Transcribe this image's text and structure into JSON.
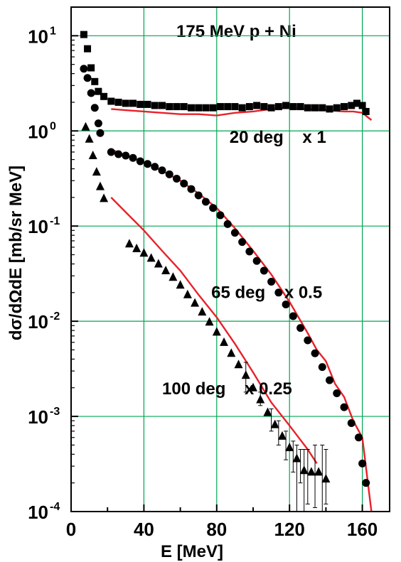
{
  "chart_data": {
    "type": "scatter",
    "title": "175 MeV p + Ni",
    "xlabel": "E [MeV]",
    "ylabel": "dσ/dΩdE  [mb/sr MeV]",
    "xlim": [
      0,
      175
    ],
    "ylim": [
      0.0001,
      20
    ],
    "yscale": "log",
    "grid": true,
    "grid_color": "#00a651",
    "calc_color": "#e8212a",
    "x_ticks": [
      "0",
      "40",
      "80",
      "120",
      "160"
    ],
    "x_tick_values": [
      0,
      40,
      80,
      120,
      160
    ],
    "y_ticks": [
      {
        "base": "10",
        "exp": "1",
        "value": 10
      },
      {
        "base": "10",
        "exp": "0",
        "value": 1
      },
      {
        "base": "10",
        "exp": "-1",
        "value": 0.1
      },
      {
        "base": "10",
        "exp": "-2",
        "value": 0.01
      },
      {
        "base": "10",
        "exp": "-3",
        "value": 0.001
      },
      {
        "base": "10",
        "exp": "-4",
        "value": 0.0001
      }
    ],
    "annotations": [
      {
        "text": "20 deg    x 1",
        "x": 87,
        "y": 0.75
      },
      {
        "text": "65 deg    x 0.5",
        "x": 77,
        "y": 0.0175
      },
      {
        "text": "100 deg    x 0.25",
        "x": 50,
        "y": 0.0017
      }
    ],
    "series": [
      {
        "marker": "square",
        "points": [
          [
            7,
            10.3
          ],
          [
            9,
            7.3
          ],
          [
            11,
            4.6
          ],
          [
            13,
            3.3
          ],
          [
            15,
            2.6
          ],
          [
            18,
            2.3
          ],
          [
            22,
            2.05
          ],
          [
            26,
            2.0
          ],
          [
            30,
            1.95
          ],
          [
            34,
            1.95
          ],
          [
            38,
            1.9
          ],
          [
            42,
            1.9
          ],
          [
            46,
            1.85
          ],
          [
            50,
            1.85
          ],
          [
            54,
            1.8
          ],
          [
            58,
            1.8
          ],
          [
            62,
            1.8
          ],
          [
            66,
            1.75
          ],
          [
            70,
            1.75
          ],
          [
            74,
            1.75
          ],
          [
            78,
            1.75
          ],
          [
            82,
            1.8
          ],
          [
            86,
            1.8
          ],
          [
            90,
            1.8
          ],
          [
            94,
            1.75
          ],
          [
            98,
            1.8
          ],
          [
            102,
            1.85
          ],
          [
            106,
            1.8
          ],
          [
            110,
            1.75
          ],
          [
            114,
            1.8
          ],
          [
            118,
            1.85
          ],
          [
            122,
            1.8
          ],
          [
            126,
            1.8
          ],
          [
            130,
            1.75
          ],
          [
            134,
            1.75
          ],
          [
            138,
            1.75
          ],
          [
            142,
            1.7
          ],
          [
            146,
            1.75
          ],
          [
            150,
            1.8
          ],
          [
            154,
            1.85
          ],
          [
            157,
            1.95
          ],
          [
            160,
            1.85
          ],
          [
            162,
            1.6
          ]
        ]
      },
      {
        "marker": "circle",
        "points": [
          [
            7,
            4.5
          ],
          [
            9,
            3.6
          ],
          [
            11,
            2.5
          ],
          [
            13,
            1.75
          ],
          [
            15,
            1.2
          ],
          [
            16,
            0.95
          ],
          [
            22,
            0.6
          ],
          [
            26,
            0.57
          ],
          [
            30,
            0.55
          ],
          [
            34,
            0.52
          ],
          [
            38,
            0.48
          ],
          [
            42,
            0.45
          ],
          [
            46,
            0.42
          ],
          [
            50,
            0.385
          ],
          [
            54,
            0.35
          ],
          [
            58,
            0.315
          ],
          [
            62,
            0.28
          ],
          [
            66,
            0.245
          ],
          [
            70,
            0.21
          ],
          [
            74,
            0.18
          ],
          [
            78,
            0.155
          ],
          [
            82,
            0.13
          ],
          [
            86,
            0.105
          ],
          [
            90,
            0.085
          ],
          [
            94,
            0.068
          ],
          [
            98,
            0.054
          ],
          [
            102,
            0.043
          ],
          [
            106,
            0.034
          ],
          [
            110,
            0.026
          ],
          [
            114,
            0.02
          ],
          [
            118,
            0.015
          ],
          [
            122,
            0.0113
          ],
          [
            126,
            0.0085
          ],
          [
            130,
            0.0063
          ],
          [
            134,
            0.0046
          ],
          [
            138,
            0.0033
          ],
          [
            142,
            0.0024
          ],
          [
            146,
            0.00175
          ],
          [
            150,
            0.00125
          ],
          [
            154,
            0.00085
          ],
          [
            158,
            0.0006
          ],
          [
            160,
            0.00032
          ],
          [
            162,
            0.0002
          ]
        ]
      },
      {
        "marker": "triangle",
        "points": [
          [
            8,
            1.1
          ],
          [
            10,
            0.82
          ],
          [
            12,
            0.55
          ],
          [
            14,
            0.37
          ],
          [
            16,
            0.26
          ],
          [
            18,
            0.195
          ],
          [
            32,
            0.065
          ],
          [
            36,
            0.058
          ],
          [
            40,
            0.052
          ],
          [
            44,
            0.046
          ],
          [
            48,
            0.04
          ],
          [
            52,
            0.034
          ],
          [
            56,
            0.029
          ],
          [
            60,
            0.024
          ],
          [
            64,
            0.019
          ],
          [
            68,
            0.0155
          ],
          [
            72,
            0.0125
          ],
          [
            76,
            0.0098
          ],
          [
            80,
            0.0077
          ],
          [
            84,
            0.006
          ],
          [
            88,
            0.0046
          ],
          [
            92,
            0.0035
          ],
          [
            96,
            0.0027
          ],
          [
            100,
            0.002
          ],
          [
            104,
            0.0015
          ],
          [
            108,
            0.0011
          ],
          [
            112,
            0.00082
          ],
          [
            116,
            0.00062
          ],
          [
            120,
            0.00047
          ],
          [
            124,
            0.00036
          ],
          [
            128,
            0.00027
          ],
          [
            132,
            0.00026
          ],
          [
            136,
            0.00026
          ],
          [
            140,
            0.00022
          ]
        ],
        "err": [
          [
            96,
            0.0018,
            0.0037
          ],
          [
            104,
            0.0013,
            0.0018
          ],
          [
            110,
            0.0007,
            0.0012
          ],
          [
            114,
            0.0005,
            0.0009
          ],
          [
            118,
            0.00035,
            0.0007
          ],
          [
            122,
            0.00026,
            0.00055
          ],
          [
            126,
            0.0002,
            0.00045
          ],
          [
            130,
            0.00012,
            0.00045
          ],
          [
            134,
            0.00011,
            0.0005
          ],
          [
            138,
            0.0001,
            0.0005
          ],
          [
            140,
            0.00012,
            0.00045
          ],
          [
            124,
            0.0001,
            0.0005
          ],
          [
            128,
            0.0001,
            0.00045
          ]
        ]
      }
    ],
    "calc_lines": [
      [
        [
          22,
          1.7
        ],
        [
          30,
          1.65
        ],
        [
          40,
          1.6
        ],
        [
          50,
          1.55
        ],
        [
          60,
          1.5
        ],
        [
          70,
          1.5
        ],
        [
          80,
          1.45
        ],
        [
          90,
          1.55
        ],
        [
          100,
          1.6
        ],
        [
          110,
          1.7
        ],
        [
          120,
          1.75
        ],
        [
          130,
          1.7
        ],
        [
          140,
          1.65
        ],
        [
          150,
          1.6
        ],
        [
          155,
          1.6
        ],
        [
          160,
          1.55
        ],
        [
          165,
          1.3
        ]
      ],
      [
        [
          22,
          0.64
        ],
        [
          30,
          0.55
        ],
        [
          40,
          0.47
        ],
        [
          50,
          0.38
        ],
        [
          60,
          0.3
        ],
        [
          70,
          0.22
        ],
        [
          80,
          0.155
        ],
        [
          90,
          0.095
        ],
        [
          100,
          0.055
        ],
        [
          110,
          0.031
        ],
        [
          120,
          0.016
        ],
        [
          130,
          0.0075
        ],
        [
          135,
          0.005
        ],
        [
          140,
          0.0038
        ],
        [
          145,
          0.0022
        ],
        [
          150,
          0.0016
        ],
        [
          155,
          0.0009
        ],
        [
          160,
          0.0006
        ],
        [
          165,
          0.0001
        ]
      ],
      [
        [
          22,
          0.2
        ],
        [
          30,
          0.14
        ],
        [
          40,
          0.09
        ],
        [
          50,
          0.055
        ],
        [
          60,
          0.034
        ],
        [
          70,
          0.019
        ],
        [
          80,
          0.011
        ],
        [
          90,
          0.0058
        ],
        [
          100,
          0.0029
        ],
        [
          110,
          0.0014
        ],
        [
          120,
          0.0008
        ],
        [
          125,
          0.0006
        ],
        [
          130,
          0.00045
        ],
        [
          135,
          0.00032
        ]
      ]
    ]
  }
}
